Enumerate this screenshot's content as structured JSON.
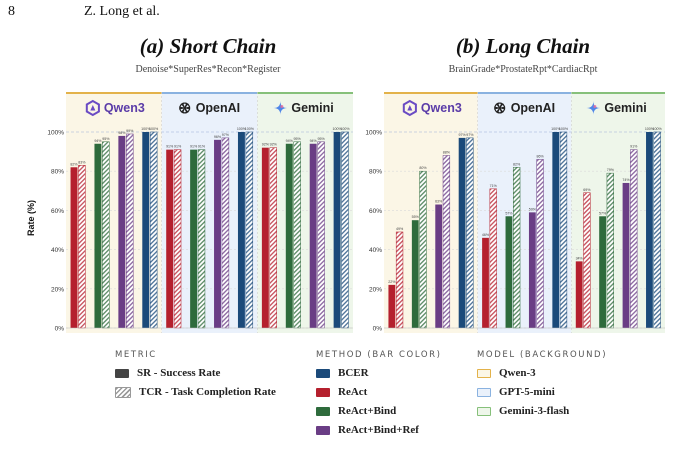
{
  "page": {
    "number": "8",
    "running_head": "Z. Long et al."
  },
  "colors": {
    "BCER": "#1b4a7a",
    "ReAct": "#b5202e",
    "ReAct+Bind": "#2e6b3c",
    "ReAct+Bind+Ref": "#6a3d85",
    "qwen_bg": "#fbf6e6",
    "qwen_border": "#e3b24a",
    "openai_bg": "#eaf1fb",
    "openai_border": "#8ab2e0",
    "gemini_bg": "#eef6ea",
    "gemini_border": "#86c07a"
  },
  "shared_axis": {
    "ylabel": "Rate (%)",
    "ylim": [
      0,
      100
    ],
    "yticks": [
      "0%",
      "20%",
      "40%",
      "60%",
      "80%",
      "100%"
    ]
  },
  "chart_data": [
    {
      "type": "bar",
      "title": "(a) Short Chain",
      "subtitle": "Denoise*SuperRes*Recon*Register",
      "ylabel": "Rate (%)",
      "ylim": [
        0,
        100
      ],
      "model_groups": [
        {
          "label": "Qwen3",
          "icon": "qwen-logo-icon",
          "methods": [
            "ReAct",
            "ReAct+Bind",
            "ReAct+Bind+Ref",
            "BCER"
          ]
        },
        {
          "label": "OpenAI",
          "icon": "openai-logo-icon",
          "methods": [
            "ReAct",
            "ReAct+Bind",
            "ReAct+Bind+Ref",
            "BCER"
          ]
        },
        {
          "label": "Gemini",
          "icon": "gemini-logo-icon",
          "methods": [
            "ReAct",
            "ReAct+Bind",
            "ReAct+Bind+Ref",
            "BCER"
          ]
        }
      ],
      "series": [
        {
          "name": "SR - Success Rate",
          "values": [
            [
              82,
              94,
              98,
              100
            ],
            [
              91,
              91,
              96,
              100
            ],
            [
              92,
              94,
              94,
              100
            ]
          ]
        },
        {
          "name": "TCR - Task Completion Rate",
          "values": [
            [
              83,
              95,
              99,
              100
            ],
            [
              91,
              91,
              97,
              100
            ],
            [
              92,
              95,
              95,
              100
            ]
          ]
        }
      ],
      "data_labels": {
        "SR": [
          [
            "82%",
            "94%",
            "98%",
            "100%"
          ],
          [
            "91%",
            "91%",
            "96%",
            "100%"
          ],
          [
            "92%",
            "94%",
            "94%",
            "100%"
          ]
        ],
        "TCR": [
          [
            "83%",
            "95%",
            "99%",
            "100%"
          ],
          [
            "91%",
            "91%",
            "97%",
            "100%"
          ],
          [
            "92%",
            "95%",
            "95%",
            "100%"
          ]
        ]
      }
    },
    {
      "type": "bar",
      "title": "(b) Long Chain",
      "subtitle": "BrainGrade*ProstateRpt*CardiacRpt",
      "ylim": [
        0,
        100
      ],
      "model_groups": [
        {
          "label": "Qwen3",
          "icon": "qwen-logo-icon",
          "methods": [
            "ReAct",
            "ReAct+Bind",
            "ReAct+Bind+Ref",
            "BCER"
          ]
        },
        {
          "label": "OpenAI",
          "icon": "openai-logo-icon",
          "methods": [
            "ReAct",
            "ReAct+Bind",
            "ReAct+Bind+Ref",
            "BCER"
          ]
        },
        {
          "label": "Gemini",
          "icon": "gemini-logo-icon",
          "methods": [
            "ReAct",
            "ReAct+Bind",
            "ReAct+Bind+Ref",
            "BCER"
          ]
        }
      ],
      "series": [
        {
          "name": "SR - Success Rate",
          "values": [
            [
              22,
              55,
              63,
              97
            ],
            [
              46,
              57,
              59,
              100
            ],
            [
              34,
              57,
              74,
              100
            ]
          ]
        },
        {
          "name": "TCR - Task Completion Rate",
          "values": [
            [
              49,
              80,
              88,
              97
            ],
            [
              71,
              82,
              86,
              100
            ],
            [
              69,
              79,
              91,
              100
            ]
          ]
        }
      ],
      "data_labels": {
        "SR": [
          [
            "22%",
            "55%",
            "63%",
            "97%"
          ],
          [
            "46%",
            "57%",
            "59%",
            "100%"
          ],
          [
            "34%",
            "57%",
            "74%",
            "100%"
          ]
        ],
        "TCR": [
          [
            "49%",
            "80%",
            "88%",
            "97%"
          ],
          [
            "71%",
            "82%",
            "86%",
            "100%"
          ],
          [
            "69%",
            "79%",
            "91%",
            "100%"
          ]
        ]
      }
    }
  ],
  "legend": {
    "metric": {
      "title": "METRIC",
      "items": [
        "SR - Success Rate",
        "TCR - Task Completion Rate"
      ]
    },
    "method": {
      "title": "METHOD (BAR COLOR)",
      "items": [
        "BCER",
        "ReAct",
        "ReAct+Bind",
        "ReAct+Bind+Ref"
      ]
    },
    "model": {
      "title": "MODEL (BACKGROUND)",
      "items": [
        "Qwen-3",
        "GPT-5-mini",
        "Gemini-3-flash"
      ]
    }
  }
}
